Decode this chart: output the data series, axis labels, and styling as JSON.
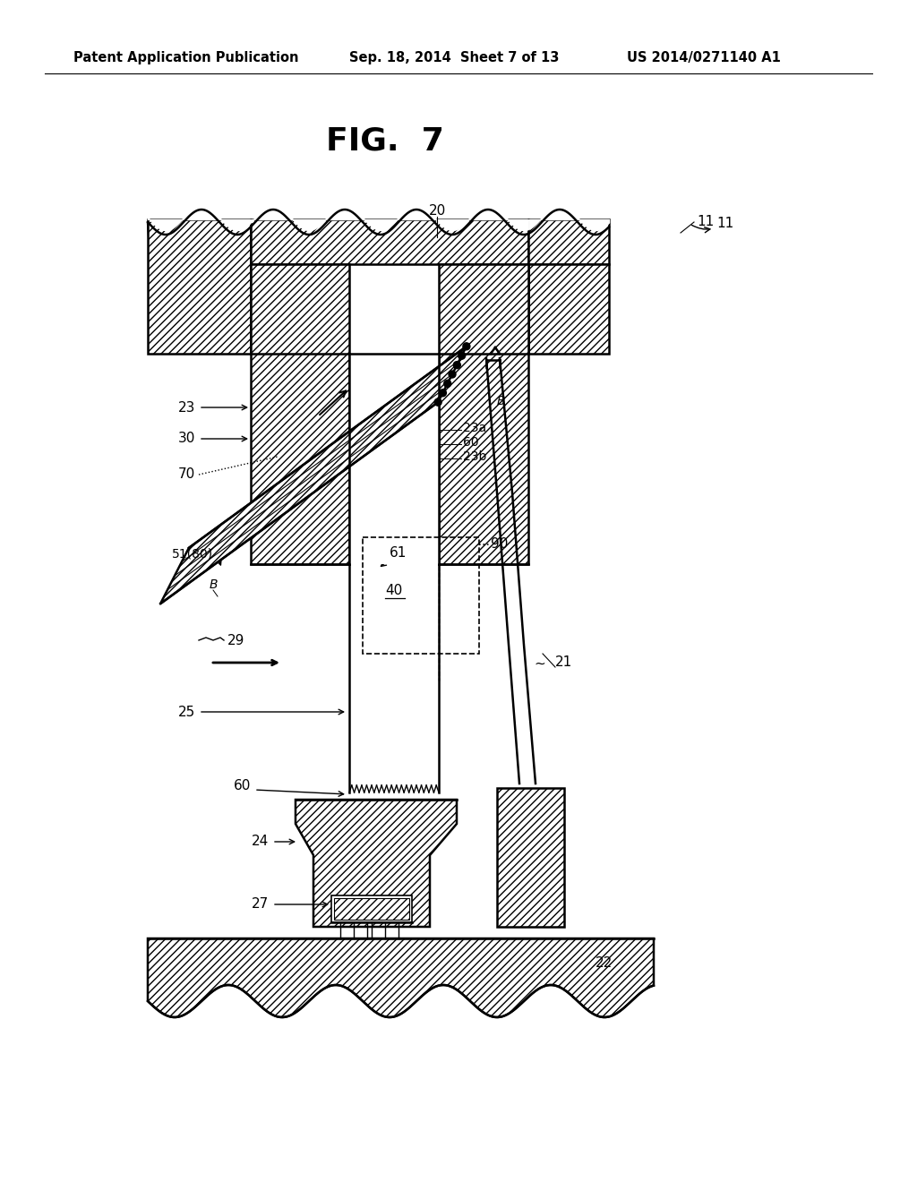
{
  "background_color": "#ffffff",
  "header_left": "Patent Application Publication",
  "header_center": "Sep. 18, 2014  Sheet 7 of 13",
  "header_right": "US 2014/0271140 A1",
  "fig_title": "FIG.  7"
}
